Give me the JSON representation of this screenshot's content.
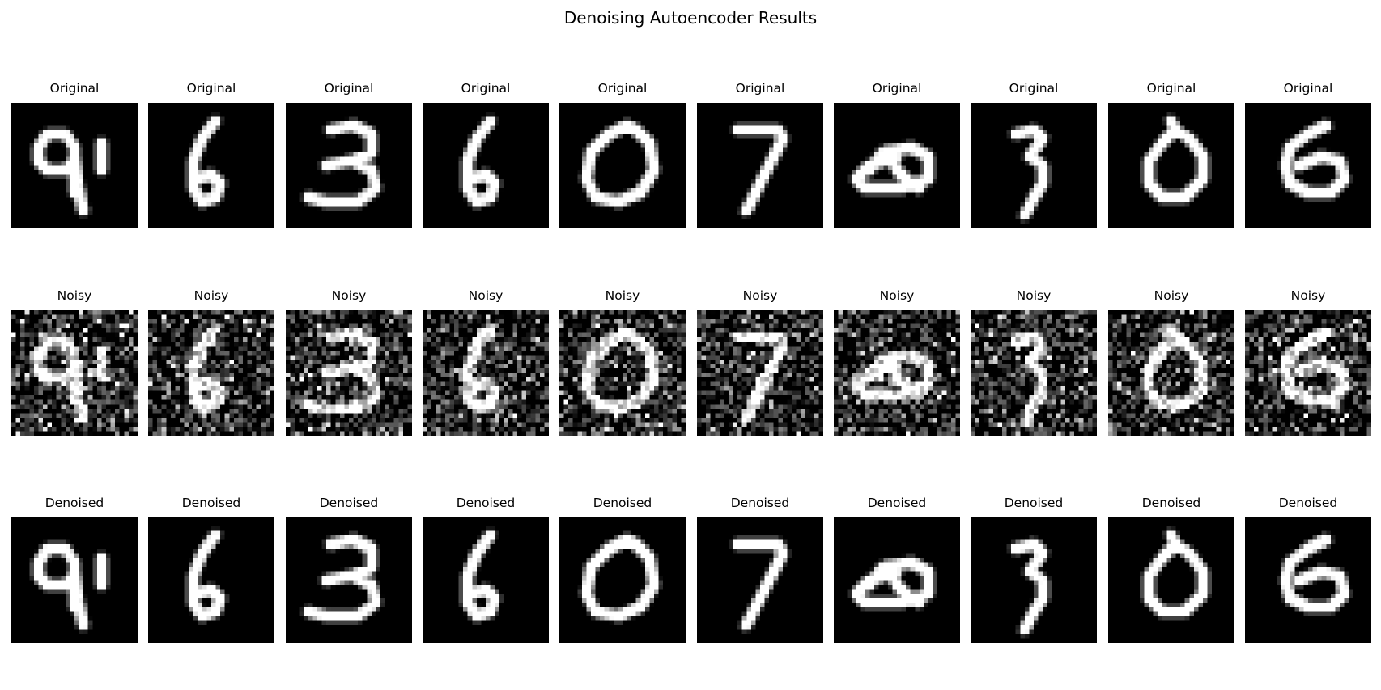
{
  "title": "Denoising Autoencoder Results",
  "rows": [
    {
      "label": "Original"
    },
    {
      "label": "Noisy"
    },
    {
      "label": "Denoised"
    }
  ],
  "digits": [
    "9",
    "6",
    "3",
    "6",
    "0",
    "7",
    "0",
    "3",
    "0",
    "6"
  ]
}
